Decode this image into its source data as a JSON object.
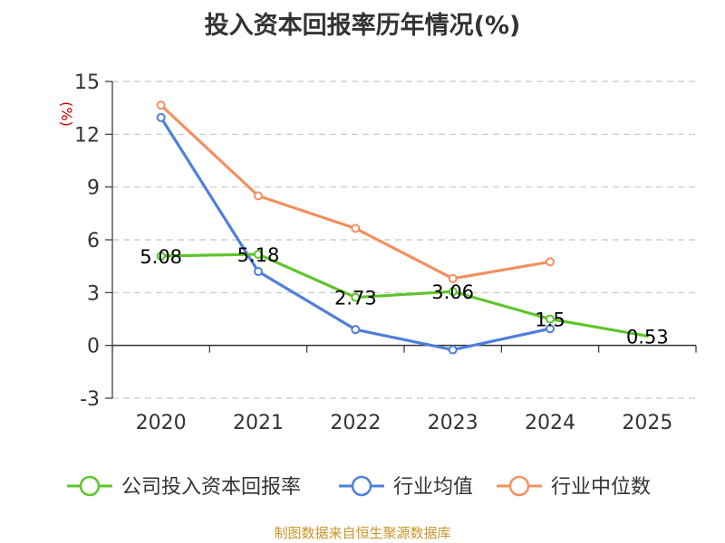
{
  "chart_data": {
    "type": "line",
    "title": "投入资本回报率历年情况(%)",
    "unit": "(%)",
    "categories": [
      "2020",
      "2021",
      "2022",
      "2023",
      "2024",
      "2025"
    ],
    "ylim": [
      -3,
      15
    ],
    "yticks": [
      15,
      12,
      9,
      6,
      3,
      0,
      -3
    ],
    "grid": true,
    "legend_position": "bottom",
    "series": [
      {
        "name": "公司投入资本回报率",
        "color": "#5ec52b",
        "values": [
          5.08,
          5.18,
          2.73,
          3.06,
          1.5,
          0.53
        ],
        "labels": [
          "5.08",
          "5.18",
          "2.73",
          "3.06",
          "1.5",
          "0.53"
        ]
      },
      {
        "name": "行业均值",
        "color": "#4f7fdc",
        "values": [
          12.95,
          4.2,
          0.9,
          -0.25,
          0.95,
          null
        ]
      },
      {
        "name": "行业中位数",
        "color": "#f39060",
        "values": [
          13.65,
          8.5,
          6.65,
          3.8,
          4.75,
          null
        ]
      }
    ]
  },
  "source": "制图数据来自恒生聚源数据库"
}
